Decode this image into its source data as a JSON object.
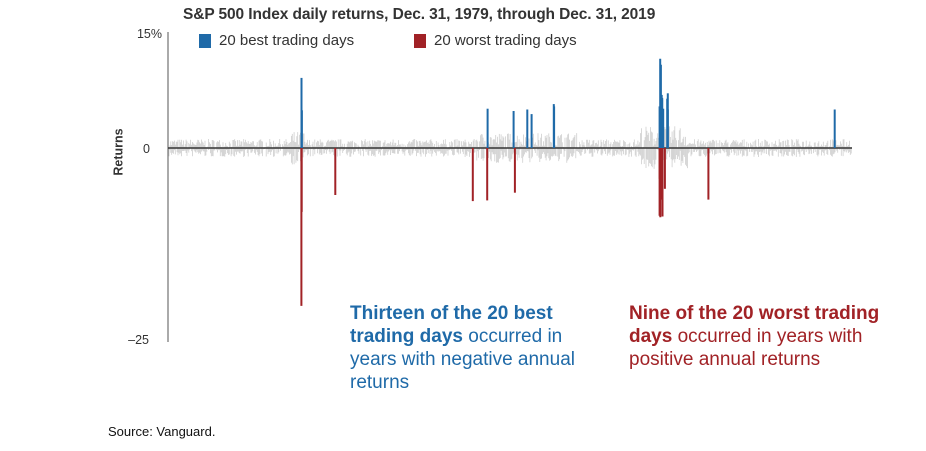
{
  "title": "S&P 500 Index daily returns, Dec. 31, 1979, through Dec. 31, 2019",
  "legend": {
    "best": "20 best trading days",
    "worst": "20 worst trading days"
  },
  "colors": {
    "best": "#1f6aa8",
    "worst": "#a12226",
    "noise": "#cfcfcf",
    "zero_line": "#333333"
  },
  "chart_data": {
    "type": "bar",
    "x_range": [
      "1979-12-31",
      "2019-12-31"
    ],
    "ylabel": "Returns",
    "ylim": [
      -25,
      15
    ],
    "y_ticks": [
      "15%",
      "0",
      "–25"
    ],
    "grid": false,
    "legend_position": "top-left",
    "series": [
      {
        "name": "20 best trading days",
        "points": [
          {
            "date": "1987-10-21",
            "value": 9.1
          },
          {
            "date": "1987-10-29",
            "value": 4.9
          },
          {
            "date": "2000-03-16",
            "value": 4.8
          },
          {
            "date": "2001-01-03",
            "value": 5.0
          },
          {
            "date": "2002-07-24",
            "value": 5.7
          },
          {
            "date": "2002-07-29",
            "value": 5.4
          },
          {
            "date": "2008-10-13",
            "value": 11.6
          },
          {
            "date": "2008-10-28",
            "value": 10.8
          },
          {
            "date": "2008-11-13",
            "value": 6.9
          },
          {
            "date": "2008-11-24",
            "value": 6.5
          },
          {
            "date": "2008-11-21",
            "value": 6.3
          },
          {
            "date": "2009-03-23",
            "value": 7.1
          },
          {
            "date": "2009-03-10",
            "value": 6.4
          },
          {
            "date": "2008-10-20",
            "value": 4.8
          },
          {
            "date": "2008-12-16",
            "value": 5.1
          },
          {
            "date": "2008-09-30",
            "value": 5.4
          },
          {
            "date": "2009-03-23",
            "value": 5.0
          },
          {
            "date": "1998-09-08",
            "value": 5.1
          },
          {
            "date": "2001-04-05",
            "value": 4.4
          },
          {
            "date": "2018-12-26",
            "value": 5.0
          }
        ]
      },
      {
        "name": "20 worst trading days",
        "points": [
          {
            "date": "1987-10-19",
            "value": -20.5
          },
          {
            "date": "1987-10-26",
            "value": -8.3
          },
          {
            "date": "1989-10-13",
            "value": -6.1
          },
          {
            "date": "1997-10-27",
            "value": -6.9
          },
          {
            "date": "1998-08-31",
            "value": -6.8
          },
          {
            "date": "2000-04-14",
            "value": -5.8
          },
          {
            "date": "2008-09-29",
            "value": -8.8
          },
          {
            "date": "2008-10-09",
            "value": -7.6
          },
          {
            "date": "2008-10-15",
            "value": -9.0
          },
          {
            "date": "2008-12-01",
            "value": -8.9
          },
          {
            "date": "2008-10-07",
            "value": -5.7
          },
          {
            "date": "2008-10-22",
            "value": -6.1
          },
          {
            "date": "2008-11-20",
            "value": -6.7
          },
          {
            "date": "2008-11-19",
            "value": -6.1
          },
          {
            "date": "2008-10-02",
            "value": -4.0
          },
          {
            "date": "2008-11-05",
            "value": -5.3
          },
          {
            "date": "2008-11-12",
            "value": -5.2
          },
          {
            "date": "2009-01-20",
            "value": -5.3
          },
          {
            "date": "2008-11-06",
            "value": -5.0
          },
          {
            "date": "2011-08-08",
            "value": -6.7
          }
        ]
      }
    ]
  },
  "annotations": {
    "best": {
      "bold": "Thirteen of the 20 best trading days",
      "rest": " occurred in years with negative annual returns"
    },
    "worst": {
      "bold": "Nine of the 20 worst trading days",
      "rest": " occurred in years with positive annual returns"
    }
  },
  "source": "Source: Vanguard."
}
